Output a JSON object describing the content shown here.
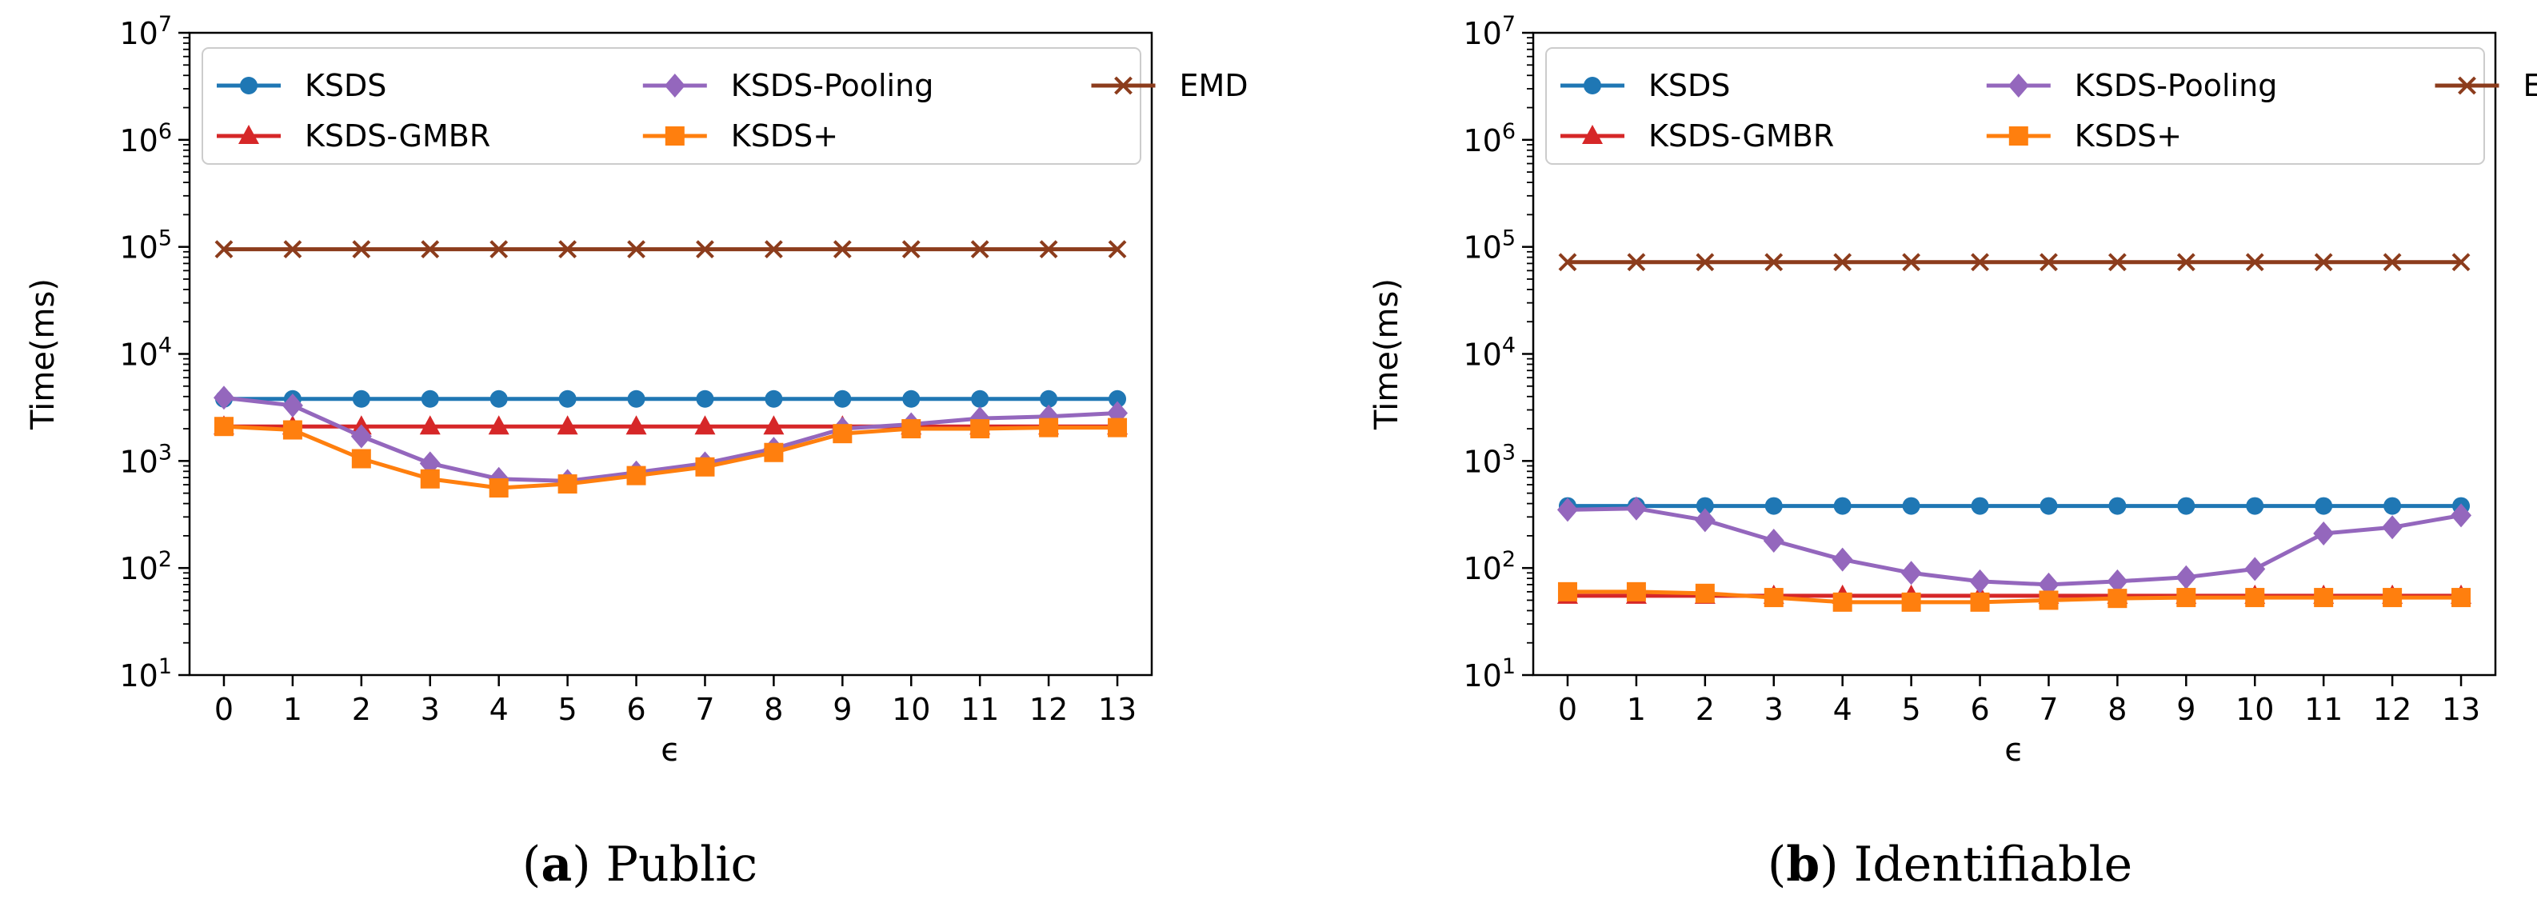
{
  "colors": {
    "KSDS": "#1f77b4",
    "KSDS-GMBR": "#d62728",
    "KSDS-Pooling": "#9467bd",
    "KSDS+": "#ff7f0e",
    "EMD": "#8c3c1c"
  },
  "chart_data": [
    {
      "type": "line",
      "caption_letter": "(a)",
      "caption_text": "Public",
      "xlabel": "ϵ",
      "ylabel": "Time(ms)",
      "yscale": "log",
      "ylim": [
        10,
        10000000
      ],
      "yticks": [
        10,
        100,
        1000,
        10000,
        100000,
        1000000,
        10000000
      ],
      "ytick_exponents": [
        "1",
        "2",
        "3",
        "4",
        "5",
        "6",
        "7"
      ],
      "ytick_base": "10",
      "x": [
        0,
        1,
        2,
        3,
        4,
        5,
        6,
        7,
        8,
        9,
        10,
        11,
        12,
        13
      ],
      "xtick_labels": [
        "0",
        "1",
        "2",
        "3",
        "4",
        "5",
        "6",
        "7",
        "8",
        "9",
        "10",
        "11",
        "12",
        "13"
      ],
      "grid": false,
      "legend_position": "top",
      "series": [
        {
          "name": "KSDS",
          "marker": "circle",
          "values": [
            3800,
            3800,
            3800,
            3800,
            3800,
            3800,
            3800,
            3800,
            3800,
            3800,
            3800,
            3800,
            3800,
            3800
          ]
        },
        {
          "name": "KSDS-GMBR",
          "marker": "triangle",
          "values": [
            2100,
            2100,
            2100,
            2100,
            2100,
            2100,
            2100,
            2100,
            2100,
            2100,
            2100,
            2100,
            2100,
            2100
          ]
        },
        {
          "name": "KSDS-Pooling",
          "marker": "diamond",
          "values": [
            3900,
            3300,
            1700,
            950,
            680,
            650,
            780,
            950,
            1300,
            2000,
            2200,
            2500,
            2600,
            2800
          ]
        },
        {
          "name": "KSDS+",
          "marker": "square",
          "values": [
            2100,
            1950,
            1050,
            680,
            560,
            610,
            730,
            880,
            1200,
            1800,
            2000,
            2000,
            2050,
            2050
          ]
        },
        {
          "name": "EMD",
          "marker": "x",
          "values": [
            95000,
            95000,
            95000,
            95000,
            95000,
            95000,
            95000,
            95000,
            95000,
            95000,
            95000,
            95000,
            95000,
            95000
          ]
        }
      ]
    },
    {
      "type": "line",
      "caption_letter": "(b)",
      "caption_text": "Identifiable",
      "xlabel": "ϵ",
      "ylabel": "Time(ms)",
      "yscale": "log",
      "ylim": [
        10,
        10000000
      ],
      "yticks": [
        10,
        100,
        1000,
        10000,
        100000,
        1000000,
        10000000
      ],
      "ytick_exponents": [
        "1",
        "2",
        "3",
        "4",
        "5",
        "6",
        "7"
      ],
      "ytick_base": "10",
      "x": [
        0,
        1,
        2,
        3,
        4,
        5,
        6,
        7,
        8,
        9,
        10,
        11,
        12,
        13
      ],
      "xtick_labels": [
        "0",
        "1",
        "2",
        "3",
        "4",
        "5",
        "6",
        "7",
        "8",
        "9",
        "10",
        "11",
        "12",
        "13"
      ],
      "grid": false,
      "legend_position": "top",
      "series": [
        {
          "name": "KSDS",
          "marker": "circle",
          "values": [
            380,
            380,
            380,
            380,
            380,
            380,
            380,
            380,
            380,
            380,
            380,
            380,
            380,
            380
          ]
        },
        {
          "name": "KSDS-GMBR",
          "marker": "triangle",
          "values": [
            55,
            55,
            55,
            55,
            55,
            55,
            55,
            55,
            55,
            55,
            55,
            55,
            55,
            55
          ]
        },
        {
          "name": "KSDS-Pooling",
          "marker": "diamond",
          "values": [
            350,
            360,
            280,
            180,
            120,
            90,
            75,
            70,
            75,
            82,
            98,
            210,
            240,
            310
          ]
        },
        {
          "name": "KSDS+",
          "marker": "square",
          "values": [
            60,
            60,
            58,
            53,
            48,
            48,
            48,
            50,
            52,
            53,
            53,
            53,
            53,
            53
          ]
        },
        {
          "name": "EMD",
          "marker": "x",
          "values": [
            72000,
            72000,
            72000,
            72000,
            72000,
            72000,
            72000,
            72000,
            72000,
            72000,
            72000,
            72000,
            72000,
            72000
          ]
        }
      ]
    }
  ]
}
